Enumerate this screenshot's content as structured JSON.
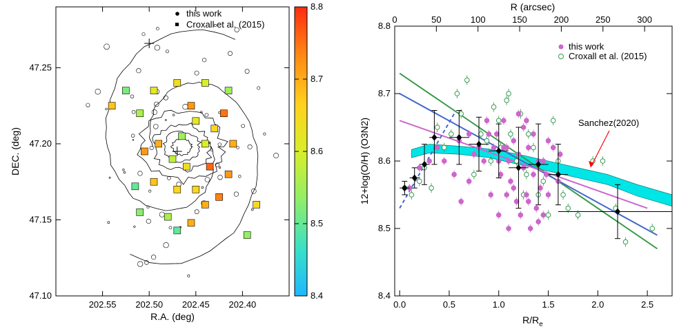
{
  "chart_data": [
    {
      "type": "map",
      "xlabel": "R.A. (deg)",
      "ylabel": "DEC. (deg)",
      "xlim": [
        202.6,
        202.35
      ],
      "ylim": [
        47.1,
        47.29
      ],
      "x_ticks": [
        "202.55",
        "202.50",
        "202.45",
        "202.40"
      ],
      "y_ticks": [
        "47.10",
        "47.15",
        "47.20",
        "47.25"
      ],
      "legend": [
        "this work",
        "Croxall et al. (2015)"
      ],
      "legend_position": "top-right",
      "colorbar": {
        "min": 8.4,
        "max": 8.8,
        "ticks": [
          "8.4",
          "8.5",
          "8.6",
          "8.7",
          "8.8"
        ],
        "colors": [
          "#1fb7ff",
          "#37e0c8",
          "#8fee6a",
          "#d8ee2a",
          "#ffd21e",
          "#ff8a14",
          "#ff2c10"
        ]
      },
      "crosses": [
        {
          "x": 202.5,
          "y": 47.266
        },
        {
          "x": 202.47,
          "y": 47.195
        }
      ],
      "regions": [
        {
          "x": 202.44,
          "y": 47.2,
          "v": 8.6
        },
        {
          "x": 202.465,
          "y": 47.205,
          "v": 8.55
        },
        {
          "x": 202.45,
          "y": 47.215,
          "v": 8.62
        },
        {
          "x": 202.475,
          "y": 47.19,
          "v": 8.58
        },
        {
          "x": 202.46,
          "y": 47.185,
          "v": 8.64
        },
        {
          "x": 202.43,
          "y": 47.21,
          "v": 8.66
        },
        {
          "x": 202.49,
          "y": 47.2,
          "v": 8.7
        },
        {
          "x": 202.455,
          "y": 47.225,
          "v": 8.72
        },
        {
          "x": 202.42,
          "y": 47.22,
          "v": 8.75
        },
        {
          "x": 202.41,
          "y": 47.2,
          "v": 8.7
        },
        {
          "x": 202.415,
          "y": 47.18,
          "v": 8.72
        },
        {
          "x": 202.425,
          "y": 47.165,
          "v": 8.74
        },
        {
          "x": 202.44,
          "y": 47.16,
          "v": 8.7
        },
        {
          "x": 202.47,
          "y": 47.17,
          "v": 8.66
        },
        {
          "x": 202.495,
          "y": 47.175,
          "v": 8.68
        },
        {
          "x": 202.505,
          "y": 47.195,
          "v": 8.72
        },
        {
          "x": 202.51,
          "y": 47.22,
          "v": 8.56
        },
        {
          "x": 202.495,
          "y": 47.235,
          "v": 8.62
        },
        {
          "x": 202.47,
          "y": 47.24,
          "v": 8.64
        },
        {
          "x": 202.44,
          "y": 47.24,
          "v": 8.6
        },
        {
          "x": 202.415,
          "y": 47.235,
          "v": 8.55
        },
        {
          "x": 202.525,
          "y": 47.235,
          "v": 8.52
        },
        {
          "x": 202.51,
          "y": 47.155,
          "v": 8.53
        },
        {
          "x": 202.48,
          "y": 47.152,
          "v": 8.56
        },
        {
          "x": 202.455,
          "y": 47.148,
          "v": 8.7
        },
        {
          "x": 202.515,
          "y": 47.172,
          "v": 8.5
        },
        {
          "x": 202.395,
          "y": 47.14,
          "v": 8.54
        },
        {
          "x": 202.385,
          "y": 47.16,
          "v": 8.65
        },
        {
          "x": 202.47,
          "y": 47.143,
          "v": 8.5
        },
        {
          "x": 202.54,
          "y": 47.225,
          "v": 8.68
        },
        {
          "x": 202.435,
          "y": 47.185,
          "v": 8.76
        },
        {
          "x": 202.45,
          "y": 47.17,
          "v": 8.66
        }
      ]
    },
    {
      "type": "scatter",
      "xlabel": "R/R",
      "xlabel_sub": "e",
      "ylabel": "12+log(O/H) (O3N2)",
      "top_label": "R (arcsec)",
      "xlim": [
        -0.05,
        2.75
      ],
      "ylim": [
        8.4,
        8.8
      ],
      "top_xlim": [
        0,
        333
      ],
      "x_ticks": [
        "0.0",
        "0.5",
        "1.0",
        "1.5",
        "2.0",
        "2.5"
      ],
      "top_ticks": [
        "0",
        "50",
        "100",
        "150",
        "200",
        "250",
        "300"
      ],
      "y_ticks": [
        "8.4",
        "8.5",
        "8.6",
        "8.7",
        "8.8"
      ],
      "legend_position": "top-right",
      "annotation": "Sanchez(2020)",
      "series": [
        {
          "name": "this work",
          "marker": "filled-circle",
          "color": "#cc66cc",
          "points": [
            [
              0.1,
              8.56
            ],
            [
              0.2,
              8.59
            ],
            [
              0.3,
              8.6
            ],
            [
              0.38,
              8.62
            ],
            [
              0.45,
              8.6
            ],
            [
              0.55,
              8.58
            ],
            [
              0.6,
              8.63
            ],
            [
              0.62,
              8.54
            ],
            [
              0.7,
              8.64
            ],
            [
              0.75,
              8.61
            ],
            [
              0.8,
              8.62
            ],
            [
              0.85,
              8.6
            ],
            [
              0.9,
              8.64
            ],
            [
              0.92,
              8.55
            ],
            [
              0.95,
              8.62
            ],
            [
              1.0,
              8.6
            ],
            [
              1.02,
              8.58
            ],
            [
              1.05,
              8.62
            ],
            [
              1.08,
              8.55
            ],
            [
              1.1,
              8.6
            ],
            [
              1.12,
              8.57
            ],
            [
              1.15,
              8.63
            ],
            [
              1.18,
              8.54
            ],
            [
              1.2,
              8.61
            ],
            [
              1.22,
              8.52
            ],
            [
              1.25,
              8.59
            ],
            [
              1.28,
              8.55
            ],
            [
              1.3,
              8.62
            ],
            [
              1.32,
              8.5
            ],
            [
              1.35,
              8.58
            ],
            [
              1.38,
              8.53
            ],
            [
              1.4,
              8.6
            ],
            [
              1.42,
              8.56
            ],
            [
              1.45,
              8.52
            ],
            [
              1.48,
              8.58
            ],
            [
              1.5,
              8.55
            ],
            [
              1.55,
              8.62
            ],
            [
              1.6,
              8.57
            ],
            [
              1.62,
              8.61
            ],
            [
              1.2,
              8.67
            ],
            [
              1.25,
              8.65
            ],
            [
              1.05,
              8.66
            ],
            [
              0.98,
              8.64
            ],
            [
              1.1,
              8.5
            ],
            [
              1.3,
              8.54
            ],
            [
              0.88,
              8.66
            ],
            [
              1.15,
              8.56
            ],
            [
              1.35,
              8.64
            ],
            [
              1.0,
              8.52
            ],
            [
              1.4,
              8.51
            ],
            [
              1.5,
              8.63
            ],
            [
              0.7,
              8.57
            ],
            [
              1.28,
              8.66
            ],
            [
              1.08,
              8.62
            ],
            [
              1.45,
              8.6
            ]
          ]
        },
        {
          "name": "Croxall et al. (2015)",
          "marker": "open-circle",
          "color": "#33994d",
          "points": [
            [
              0.05,
              8.56
            ],
            [
              0.12,
              8.55
            ],
            [
              0.2,
              8.57
            ],
            [
              0.25,
              8.59
            ],
            [
              0.32,
              8.56
            ],
            [
              0.38,
              8.65
            ],
            [
              0.45,
              8.62
            ],
            [
              0.52,
              8.64
            ],
            [
              0.58,
              8.7
            ],
            [
              0.62,
              8.67
            ],
            [
              0.68,
              8.72
            ],
            [
              0.75,
              8.58
            ],
            [
              0.82,
              8.64
            ],
            [
              0.88,
              8.63
            ],
            [
              0.95,
              8.68
            ],
            [
              1.0,
              8.66
            ],
            [
              1.02,
              8.62
            ],
            [
              1.08,
              8.69
            ],
            [
              1.12,
              8.64
            ],
            [
              1.18,
              8.6
            ],
            [
              1.22,
              8.67
            ],
            [
              1.28,
              8.58
            ],
            [
              1.3,
              8.64
            ],
            [
              1.35,
              8.62
            ],
            [
              1.4,
              8.55
            ],
            [
              1.45,
              8.57
            ],
            [
              1.5,
              8.52
            ],
            [
              1.55,
              8.66
            ],
            [
              1.6,
              8.6
            ],
            [
              1.65,
              8.55
            ],
            [
              1.7,
              8.53
            ],
            [
              1.8,
              8.52
            ],
            [
              1.95,
              8.6
            ],
            [
              2.05,
              8.6
            ],
            [
              2.18,
              8.53
            ],
            [
              2.28,
              8.48
            ],
            [
              2.55,
              8.5
            ],
            [
              1.1,
              8.7
            ],
            [
              0.92,
              8.6
            ],
            [
              1.25,
              8.55
            ]
          ]
        }
      ],
      "binned": {
        "x": [
          0.05,
          0.15,
          0.25,
          0.35,
          0.6,
          0.8,
          1.0,
          1.2,
          1.4,
          1.6,
          2.2
        ],
        "y": [
          8.56,
          8.575,
          8.595,
          8.635,
          8.635,
          8.625,
          8.615,
          8.59,
          8.595,
          8.58,
          8.525
        ],
        "yerr": [
          0.01,
          0.015,
          0.03,
          0.04,
          0.04,
          0.04,
          0.04,
          0.06,
          0.06,
          0.045,
          0.04
        ],
        "xerr": [
          0.05,
          0.05,
          0.05,
          0.05,
          0.1,
          0.1,
          0.1,
          0.1,
          0.1,
          0.1,
          0.6
        ]
      },
      "fits": [
        {
          "color": "#3a9a4a",
          "x": [
            0.0,
            2.6
          ],
          "y": [
            8.73,
            8.47
          ]
        },
        {
          "color": "#4466cc",
          "x": [
            0.0,
            2.6
          ],
          "y": [
            8.7,
            8.49
          ]
        },
        {
          "color": "#cc66cc",
          "x": [
            0.0,
            2.5
          ],
          "y": [
            8.66,
            8.53
          ]
        },
        {
          "color": "#4466cc",
          "dashed": true,
          "x": [
            0.0,
            0.55
          ],
          "y": [
            8.53,
            8.67
          ]
        }
      ],
      "band": {
        "color": "#00e5e5",
        "x": [
          0.12,
          0.3,
          0.6,
          0.9,
          1.2,
          1.5,
          1.8,
          2.1,
          2.4,
          2.75
        ],
        "y_low": [
          8.605,
          8.612,
          8.61,
          8.605,
          8.595,
          8.585,
          8.575,
          8.565,
          8.548,
          8.533
        ],
        "y_high": [
          8.617,
          8.625,
          8.622,
          8.618,
          8.61,
          8.6,
          8.59,
          8.58,
          8.565,
          8.55
        ]
      }
    }
  ]
}
